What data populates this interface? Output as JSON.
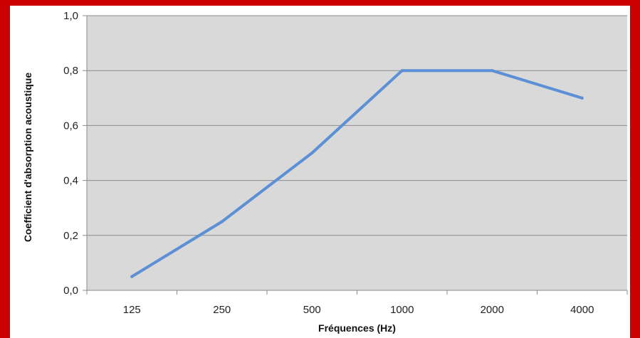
{
  "chart_data": {
    "type": "line",
    "categories": [
      "125",
      "250",
      "500",
      "1000",
      "2000",
      "4000"
    ],
    "series": [
      {
        "values": [
          0.05,
          0.25,
          0.5,
          0.8,
          0.8,
          0.7
        ]
      }
    ],
    "y_ticks": [
      "0,0",
      "0,2",
      "0,4",
      "0,6",
      "0,8",
      "1,0"
    ],
    "ylim": [
      0,
      1.0
    ],
    "xlabel": "Fréquences (Hz)",
    "ylabel": "Coefficient d'absorption acoustique",
    "grid": true,
    "legend": "none"
  },
  "colors": {
    "frame": "#cc0000",
    "plot_background": "#d9d9d9",
    "series_line": "#5b8fd6",
    "gridline": "#8c8c8c"
  }
}
